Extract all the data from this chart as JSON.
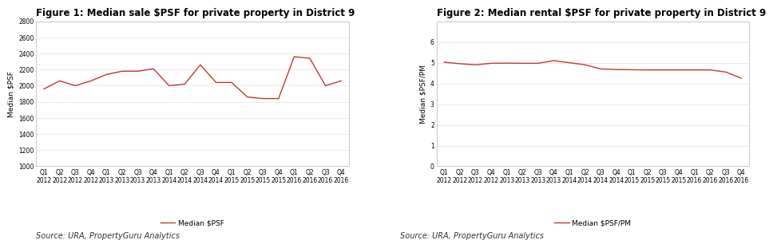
{
  "fig1_title": "Figure 1: Median sale $PSF for private property in District 9",
  "fig2_title": "Figure 2: Median rental $PSF for private property in District 9",
  "source_text": "Source: URA, PropertyGuru Analytics",
  "x_labels_top": [
    "Q1",
    "Q2",
    "Q3",
    "Q4",
    "Q1",
    "Q2",
    "Q3",
    "Q4",
    "Q1",
    "Q2",
    "Q3",
    "Q4",
    "Q1",
    "Q2",
    "Q3",
    "Q4",
    "Q1",
    "Q2",
    "Q3",
    "Q4"
  ],
  "x_labels_bot": [
    "2012",
    "2012",
    "2012",
    "2012",
    "2013",
    "2013",
    "2013",
    "2013",
    "2014",
    "2014",
    "2014",
    "2014",
    "2015",
    "2015",
    "2015",
    "2015",
    "2016",
    "2016",
    "2016",
    "2016"
  ],
  "sale_values": [
    1960,
    2060,
    2000,
    2060,
    2140,
    2180,
    2180,
    2210,
    2000,
    2020,
    2260,
    2040,
    2040,
    1860,
    1840,
    1840,
    2360,
    2340,
    2000,
    2060
  ],
  "rental_values": [
    5.02,
    4.95,
    4.9,
    4.97,
    4.98,
    4.97,
    4.97,
    5.1,
    5.0,
    4.9,
    4.7,
    4.67,
    4.66,
    4.65,
    4.65,
    4.65,
    4.65,
    4.65,
    4.55,
    4.25
  ],
  "line_color": "#c0392b",
  "fig1_ylabel": "Median $PSF",
  "fig2_ylabel": "Median $PSF/PM",
  "fig1_legend": "Median $PSF",
  "fig2_legend": "Median $PSF/PM",
  "fig1_ylim": [
    1000,
    2800
  ],
  "fig1_yticks": [
    1000,
    1200,
    1400,
    1600,
    1800,
    2000,
    2200,
    2400,
    2600,
    2800
  ],
  "fig2_ylim": [
    0,
    7
  ],
  "fig2_yticks": [
    0,
    1,
    2,
    3,
    4,
    5,
    6
  ],
  "background_color": "#ffffff",
  "plot_bg_color": "#ffffff",
  "box_color": "#cccccc",
  "title_fontsize": 8.5,
  "label_fontsize": 6.5,
  "tick_fontsize": 5.5,
  "legend_fontsize": 6.5,
  "source_fontsize": 7
}
